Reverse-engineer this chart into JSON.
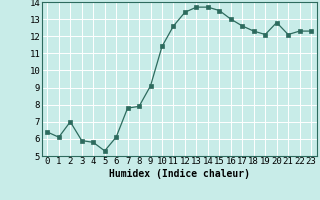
{
  "x": [
    0,
    1,
    2,
    3,
    4,
    5,
    6,
    7,
    8,
    9,
    10,
    11,
    12,
    13,
    14,
    15,
    16,
    17,
    18,
    19,
    20,
    21,
    22,
    23
  ],
  "y": [
    6.4,
    6.1,
    7.0,
    5.9,
    5.8,
    5.3,
    6.1,
    7.8,
    7.9,
    9.1,
    11.4,
    12.6,
    13.4,
    13.7,
    13.7,
    13.5,
    13.0,
    12.6,
    12.3,
    12.1,
    12.8,
    12.1,
    12.3,
    12.3
  ],
  "xlabel": "Humidex (Indice chaleur)",
  "ylim": [
    5,
    14
  ],
  "xlim_min": -0.5,
  "xlim_max": 23.5,
  "yticks": [
    5,
    6,
    7,
    8,
    9,
    10,
    11,
    12,
    13,
    14
  ],
  "xticks": [
    0,
    1,
    2,
    3,
    4,
    5,
    6,
    7,
    8,
    9,
    10,
    11,
    12,
    13,
    14,
    15,
    16,
    17,
    18,
    19,
    20,
    21,
    22,
    23
  ],
  "line_color": "#2d6b5e",
  "marker": "s",
  "marker_size": 2.5,
  "bg_color": "#c8ece8",
  "grid_color": "#ffffff",
  "xlabel_fontsize": 7,
  "tick_fontsize": 6.5
}
